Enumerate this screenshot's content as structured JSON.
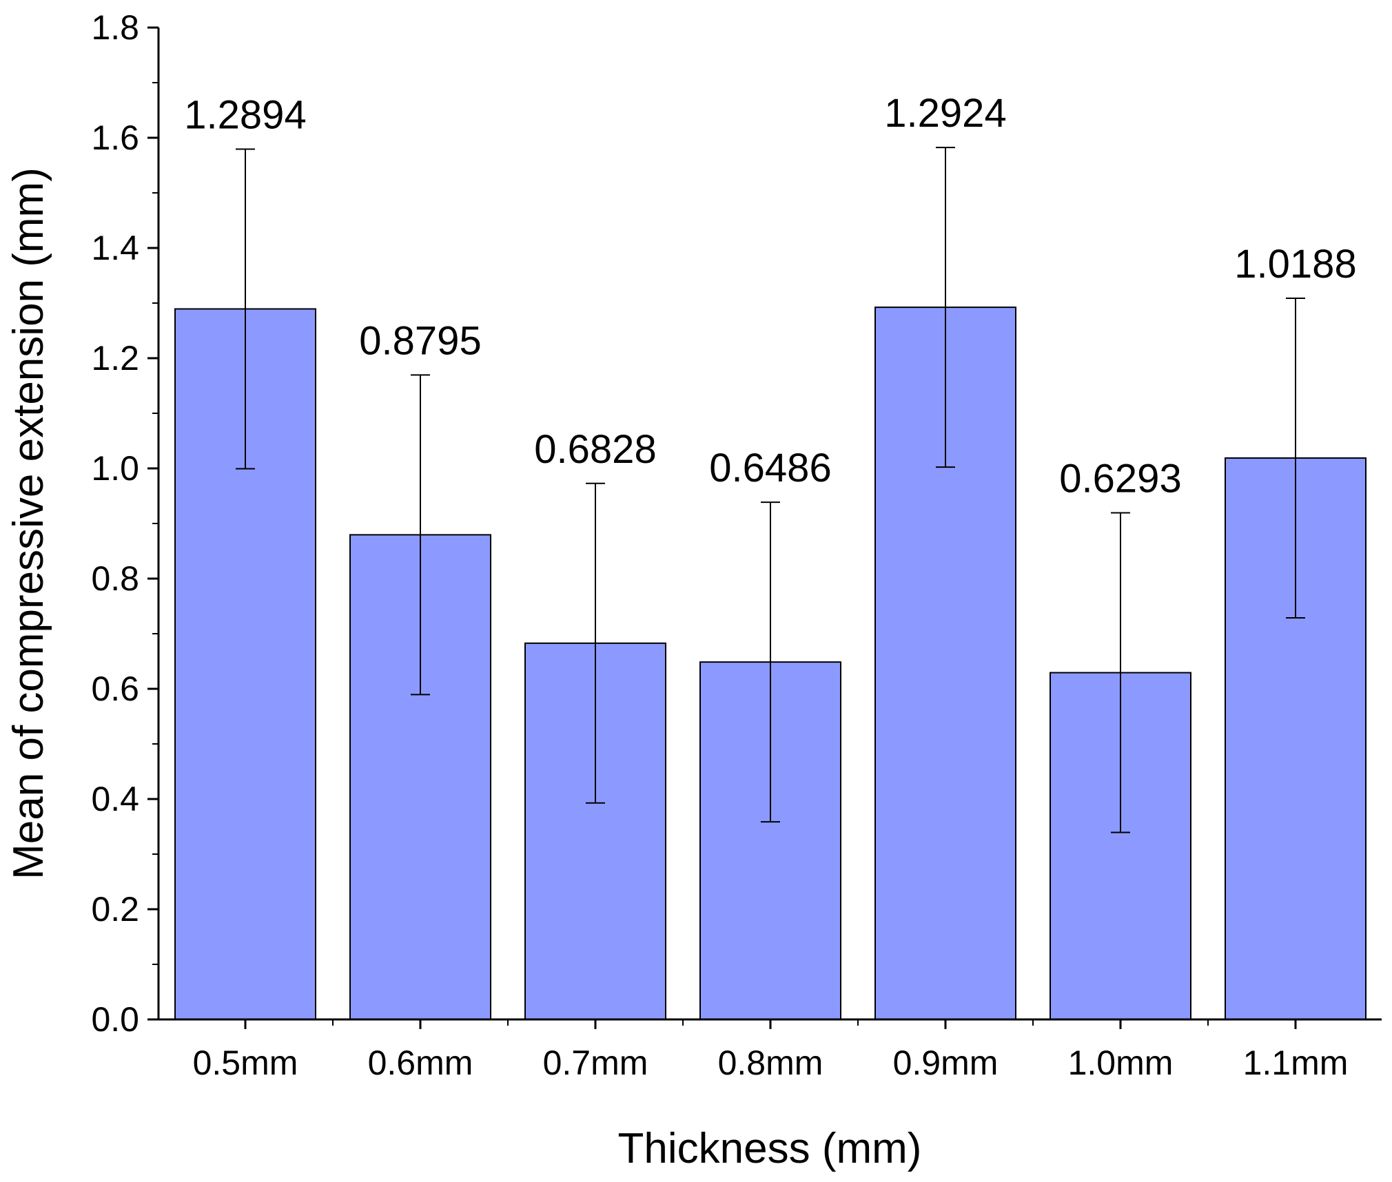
{
  "chart_data": {
    "type": "bar",
    "categories": [
      "0.5mm",
      "0.6mm",
      "0.7mm",
      "0.8mm",
      "0.9mm",
      "1.0mm",
      "1.1mm"
    ],
    "values": [
      1.2894,
      0.8795,
      0.6828,
      0.6486,
      1.2924,
      0.6293,
      1.0188
    ],
    "data_labels": [
      "1.2894",
      "0.8795",
      "0.6828",
      "0.6486",
      "1.2924",
      "0.6293",
      "1.0188"
    ],
    "error_bars": [
      0.29,
      0.29,
      0.29,
      0.29,
      0.29,
      0.29,
      0.29
    ],
    "xlabel": "Thickness (mm)",
    "ylabel": "Mean of compressive extension (mm)",
    "ylim": [
      0,
      1.8
    ],
    "yticks": [
      "0.0",
      "0.2",
      "0.4",
      "0.6",
      "0.8",
      "1.0",
      "1.2",
      "1.4",
      "1.6",
      "1.8"
    ],
    "grid": false,
    "bar_color": "#8c9aff"
  }
}
